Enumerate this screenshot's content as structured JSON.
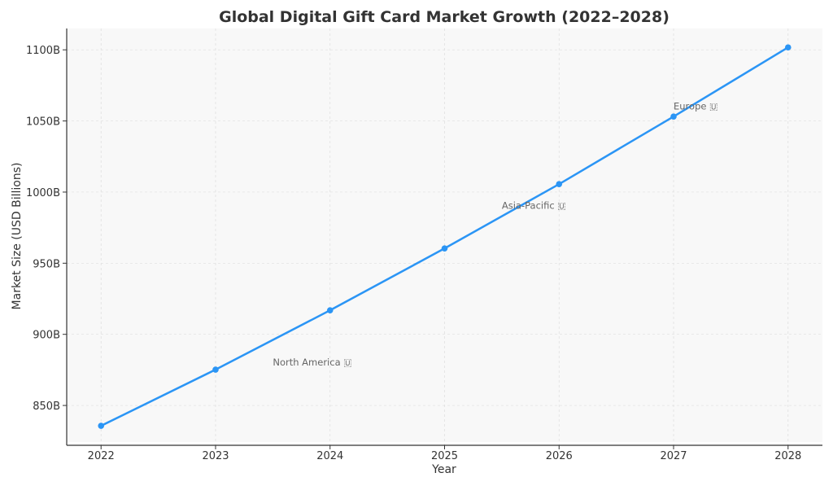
{
  "chart_data": {
    "type": "line",
    "title": "Global Digital Gift Card Market Growth (2022–2028)",
    "xlabel": "Year",
    "ylabel": "Market Size (USD Billions)",
    "x": [
      2022,
      2023,
      2024,
      2025,
      2026,
      2027,
      2028
    ],
    "values": [
      835.7,
      875.2,
      916.9,
      960.4,
      1005.6,
      1053.1,
      1101.7
    ],
    "xlim": [
      2021.7,
      2028.3
    ],
    "ylim": [
      822,
      1115
    ],
    "xticks": [
      2022,
      2023,
      2024,
      2025,
      2026,
      2027,
      2028
    ],
    "yticks": [
      850,
      900,
      950,
      1000,
      1050,
      1100
    ],
    "ytick_labels": [
      "850B",
      "900B",
      "950B",
      "1000B",
      "1050B",
      "1100B"
    ],
    "grid": true,
    "line_color": "#2b95f5",
    "annotations": [
      {
        "text": "North America 🇺",
        "x": 2023.5,
        "y": 881
      },
      {
        "text": "Asia-Pacific 🇺",
        "x": 2025.5,
        "y": 991
      },
      {
        "text": "Europe 🇺",
        "x": 2027.0,
        "y": 1061
      }
    ]
  }
}
